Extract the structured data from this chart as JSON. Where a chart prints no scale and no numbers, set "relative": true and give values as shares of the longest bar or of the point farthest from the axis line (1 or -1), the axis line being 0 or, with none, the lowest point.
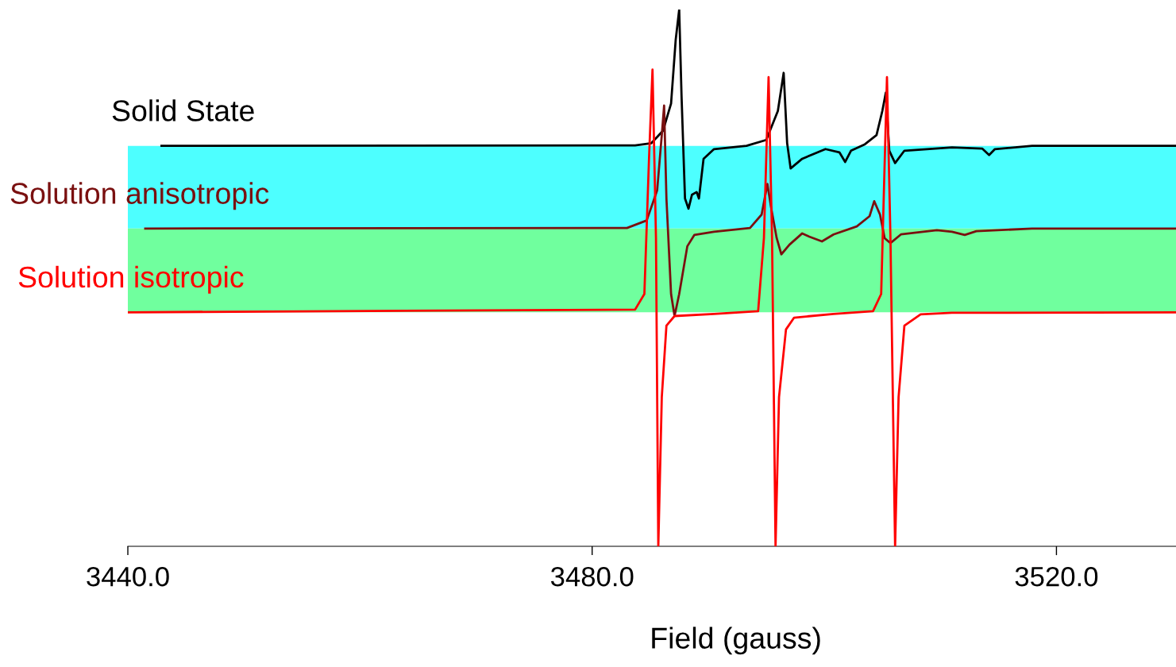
{
  "chart_data": {
    "type": "line",
    "relative": true,
    "xlabel": "Field (gauss)",
    "xlim": [
      3440,
      3530.3
    ],
    "xticks": [
      {
        "value": 3440,
        "label": "3440.0"
      },
      {
        "value": 3480,
        "label": "3480.0"
      },
      {
        "value": 3520,
        "label": "3520.0"
      }
    ],
    "bands": [
      {
        "axis": "y",
        "from": 0.592,
        "to": 0.746,
        "color": "#4dffff"
      },
      {
        "axis": "y",
        "from": 0.436,
        "to": 0.592,
        "color": "#70ff9e"
      }
    ],
    "grid": false,
    "legend": false,
    "marker": "none",
    "line_style": "solid",
    "series": [
      {
        "name": "Solid State",
        "color": "#000000",
        "x": [
          3442.9,
          3483.7,
          3485.1,
          3486.1,
          3486.8,
          3487.2,
          3487.5,
          3487.7,
          3488.0,
          3488.3,
          3488.6,
          3489.0,
          3489.2,
          3489.6,
          3490.5,
          3493.3,
          3495.0,
          3496.0,
          3496.5,
          3496.8,
          3497.1,
          3498.1,
          3500.1,
          3501.3,
          3501.8,
          3502.3,
          3503.5,
          3504.5,
          3505.0,
          3505.3,
          3505.6,
          3506.1,
          3506.9,
          3511.0,
          3513.6,
          3514.2,
          3514.7,
          3517.9,
          3530.3
        ],
        "values": [
          0.746,
          0.747,
          0.751,
          0.774,
          0.825,
          0.944,
          1.0,
          0.84,
          0.648,
          0.629,
          0.655,
          0.66,
          0.648,
          0.722,
          0.74,
          0.746,
          0.757,
          0.811,
          0.882,
          0.751,
          0.704,
          0.722,
          0.74,
          0.734,
          0.716,
          0.737,
          0.749,
          0.766,
          0.811,
          0.845,
          0.737,
          0.714,
          0.737,
          0.743,
          0.741,
          0.729,
          0.74,
          0.746,
          0.746
        ]
      },
      {
        "name": "Solution anisotropic",
        "color": "#7a1010",
        "x": [
          3441.5,
          3483.0,
          3484.7,
          3485.6,
          3486.0,
          3486.2,
          3486.4,
          3486.8,
          3487.1,
          3487.5,
          3488.2,
          3488.8,
          3490.5,
          3493.6,
          3494.6,
          3495.1,
          3495.4,
          3495.9,
          3496.3,
          3497.0,
          3498.1,
          3498.7,
          3499.8,
          3500.8,
          3502.8,
          3503.9,
          3504.3,
          3504.8,
          3505.2,
          3505.7,
          3506.6,
          3509.7,
          3511.0,
          3512.1,
          3513.1,
          3517.9,
          3530.3
        ],
        "values": [
          0.592,
          0.593,
          0.607,
          0.663,
          0.766,
          0.821,
          0.648,
          0.47,
          0.429,
          0.47,
          0.559,
          0.58,
          0.586,
          0.593,
          0.618,
          0.675,
          0.633,
          0.574,
          0.544,
          0.562,
          0.583,
          0.577,
          0.568,
          0.581,
          0.596,
          0.615,
          0.643,
          0.618,
          0.574,
          0.565,
          0.581,
          0.589,
          0.586,
          0.58,
          0.587,
          0.592,
          0.592
        ]
      },
      {
        "name": "Solution isotropic",
        "color": "#ff0000",
        "x": [
          3440.0,
          3483.7,
          3484.5,
          3484.9,
          3485.2,
          3485.5,
          3485.7,
          3486.0,
          3486.4,
          3487.1,
          3490.5,
          3494.3,
          3494.8,
          3495.2,
          3495.5,
          3495.8,
          3496.1,
          3496.7,
          3497.4,
          3500.8,
          3504.2,
          3504.9,
          3505.4,
          3505.7,
          3506.1,
          3506.4,
          3506.9,
          3508.3,
          3511.0,
          3530.3
        ],
        "values": [
          0.436,
          0.441,
          0.47,
          0.722,
          0.888,
          0.574,
          0,
          0.278,
          0.411,
          0.429,
          0.433,
          0.438,
          0.574,
          0.874,
          0.574,
          0,
          0.278,
          0.404,
          0.426,
          0.433,
          0.438,
          0.47,
          0.874,
          0.574,
          0,
          0.278,
          0.411,
          0.432,
          0.435,
          0.436
        ]
      }
    ]
  }
}
